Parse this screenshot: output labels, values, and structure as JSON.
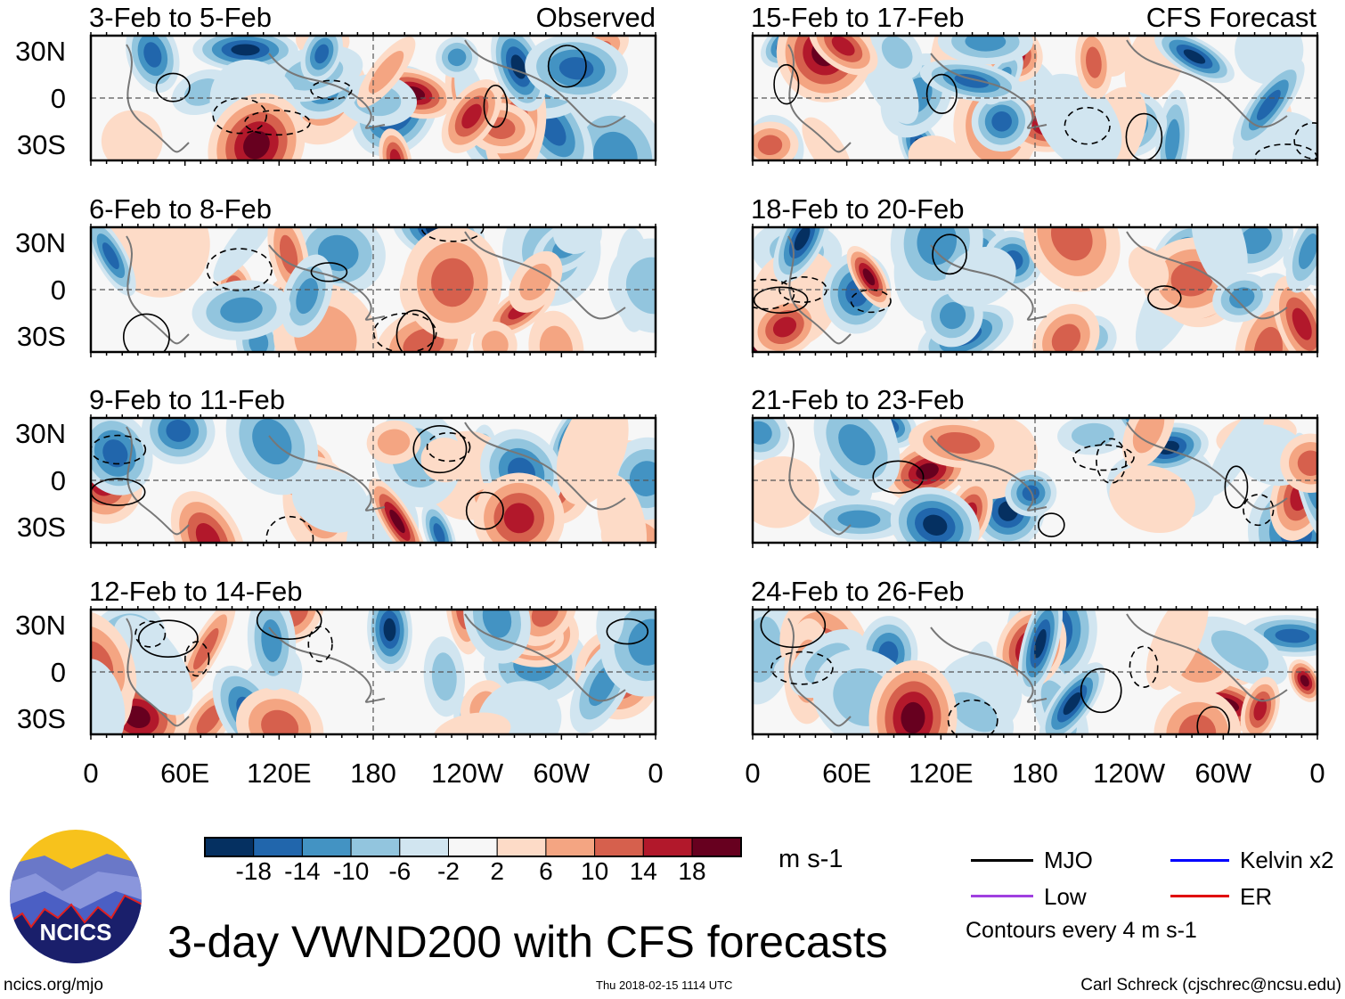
{
  "left_column": {
    "label": "Observed",
    "panels": [
      {
        "title": "3-Feb to 5-Feb"
      },
      {
        "title": "6-Feb to 8-Feb"
      },
      {
        "title": "9-Feb to 11-Feb"
      },
      {
        "title": "12-Feb to 14-Feb"
      }
    ]
  },
  "right_column": {
    "label": "CFS Forecast",
    "panels": [
      {
        "title": "15-Feb to 17-Feb"
      },
      {
        "title": "18-Feb to 20-Feb"
      },
      {
        "title": "21-Feb to 23-Feb"
      },
      {
        "title": "24-Feb to 26-Feb"
      }
    ]
  },
  "lat_labels": [
    "30N",
    "0",
    "30S"
  ],
  "lon_labels": [
    "0",
    "60E",
    "120E",
    "180",
    "120W",
    "60W",
    "0"
  ],
  "colorbar": {
    "labels": [
      "-18",
      "-14",
      "-10",
      "-6",
      "-2",
      "2",
      "6",
      "10",
      "14",
      "18"
    ],
    "colors": [
      "#053061",
      "#2166ac",
      "#4393c3",
      "#92c5de",
      "#d1e5f0",
      "#f7f7f7",
      "#fddbc7",
      "#f4a582",
      "#d6604d",
      "#b2182b",
      "#67001f"
    ],
    "units": "m s-1"
  },
  "legend": {
    "items": [
      {
        "label": "MJO",
        "color": "#000000"
      },
      {
        "label": "Kelvin x2",
        "color": "#0000ff"
      },
      {
        "label": "Low",
        "color": "#a040e0"
      },
      {
        "label": "ER",
        "color": "#e00000"
      }
    ],
    "note": "Contours every 4 m s-1"
  },
  "title": "3-day VWND200 with CFS forecasts",
  "logo_text": "NCICS",
  "footer": {
    "url": "ncics.org/mjo",
    "timestamp": "Thu 2018-02-15 1114 UTC",
    "author": "Carl Schreck (cjschrec@ncsu.edu)"
  }
}
